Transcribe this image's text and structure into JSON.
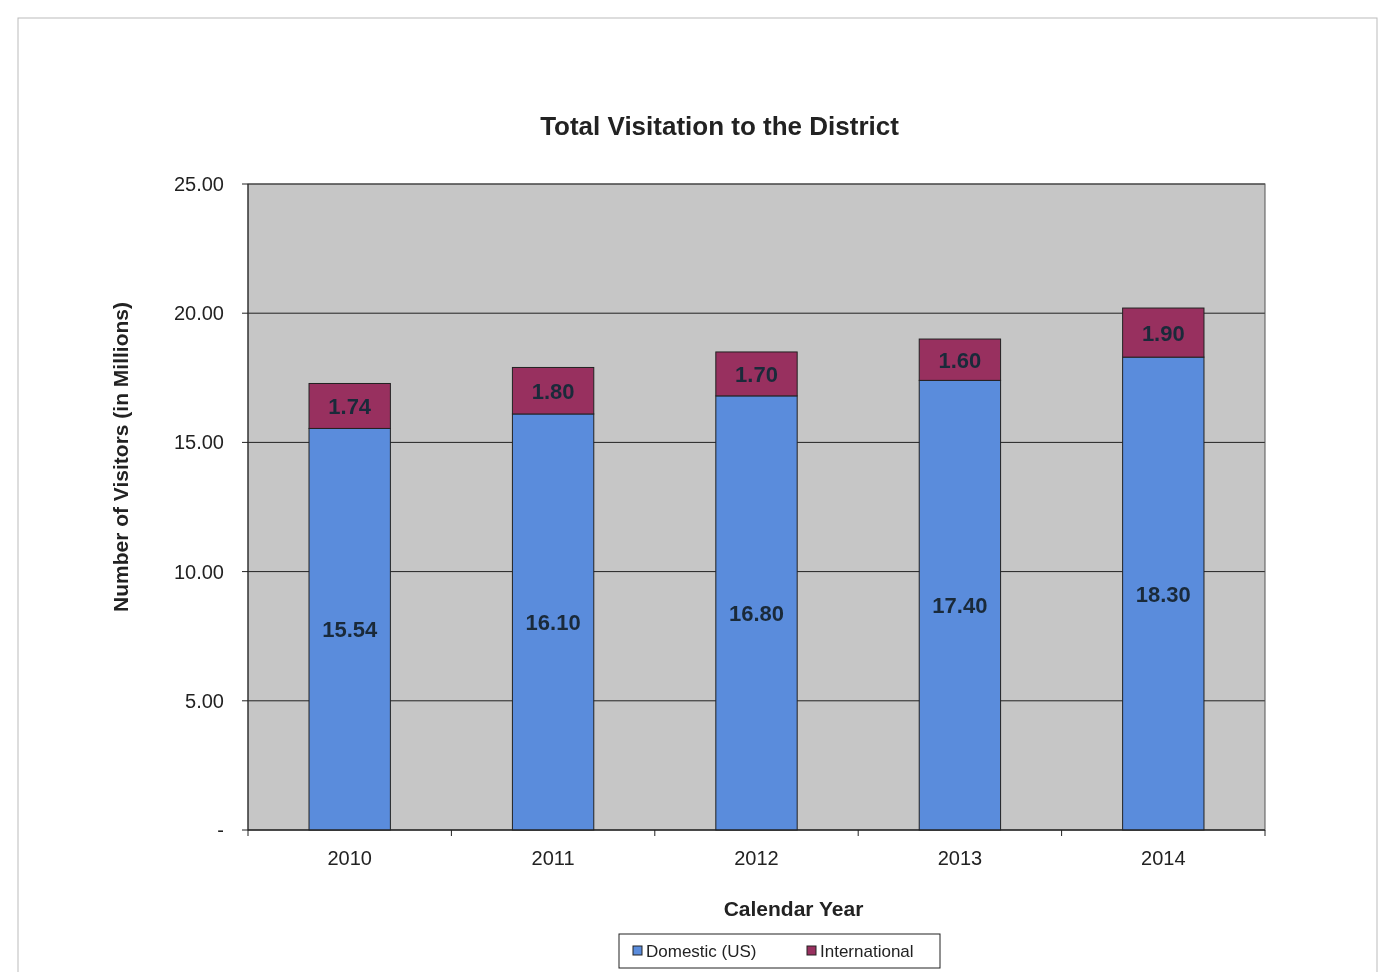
{
  "chart_data": {
    "type": "bar",
    "title": "Total Visitation to the District",
    "xlabel": "Calendar Year",
    "ylabel": "Number of Visitors (in Millions)",
    "categories": [
      "2010",
      "2011",
      "2012",
      "2013",
      "2014"
    ],
    "series": [
      {
        "name": "Domestic (US)",
        "color": "#5a8cdc",
        "values": [
          15.54,
          16.1,
          16.8,
          17.4,
          18.3
        ],
        "value_labels": [
          "15.54",
          "16.10",
          "16.80",
          "17.40",
          "18.30"
        ]
      },
      {
        "name": "International",
        "color": "#98305f",
        "values": [
          1.74,
          1.8,
          1.7,
          1.6,
          1.9
        ],
        "value_labels": [
          "1.74",
          "1.80",
          "1.70",
          "1.60",
          "1.90"
        ]
      }
    ],
    "stacked": true,
    "ylim": [
      0,
      25
    ],
    "yticks": [
      {
        "value": 0,
        "label": "-"
      },
      {
        "value": 5,
        "label": "5.00"
      },
      {
        "value": 10,
        "label": "10.00"
      },
      {
        "value": 15,
        "label": "15.00"
      },
      {
        "value": 20,
        "label": "20.00"
      },
      {
        "value": 25,
        "label": "25.00"
      }
    ],
    "grid": "y",
    "legend": "bottom"
  }
}
